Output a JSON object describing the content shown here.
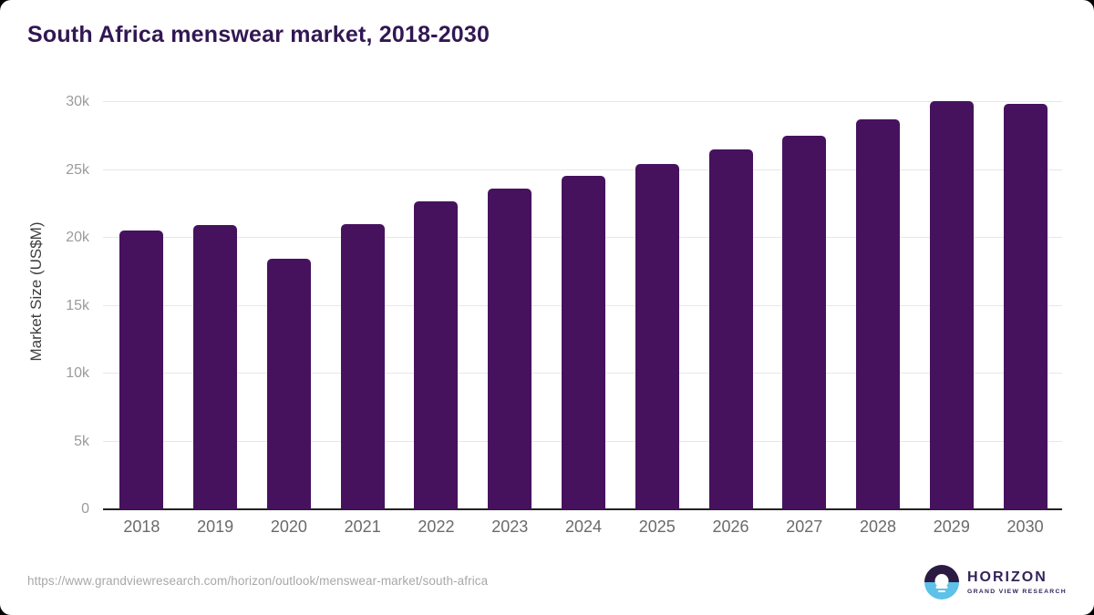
{
  "chart_data": {
    "type": "bar",
    "title": "South Africa menswear market, 2018-2030",
    "xlabel": "",
    "ylabel": "Market Size (US$M)",
    "categories": [
      "2018",
      "2019",
      "2020",
      "2021",
      "2022",
      "2023",
      "2024",
      "2025",
      "2026",
      "2027",
      "2028",
      "2029",
      "2030"
    ],
    "values": [
      20550,
      20950,
      18450,
      21000,
      22700,
      23650,
      24550,
      25450,
      26500,
      27550,
      28750,
      30100,
      29900
    ],
    "ylim": [
      0,
      30000
    ],
    "yticks": [
      {
        "value": 0,
        "label": "0"
      },
      {
        "value": 5000,
        "label": "5k"
      },
      {
        "value": 10000,
        "label": "10k"
      },
      {
        "value": 15000,
        "label": "15k"
      },
      {
        "value": 20000,
        "label": "20k"
      },
      {
        "value": 25000,
        "label": "25k"
      },
      {
        "value": 30000,
        "label": "30k"
      }
    ],
    "grid": "horizontal",
    "legend": "none",
    "bar_color": "#46125e"
  },
  "footer": {
    "source_url": "https://www.grandviewresearch.com/horizon/outlook/menswear-market/south-africa",
    "logo": {
      "brand": "HORIZON",
      "tagline": "GRAND VIEW RESEARCH",
      "icon": "sun-over-horizon-icon"
    }
  },
  "colors": {
    "title_text": "#321753",
    "bar": "#46125e",
    "gridline": "#e7e7e7",
    "axis_line": "#222222",
    "y_tick_text": "#9b9b9b",
    "x_tick_text": "#6a6a6a",
    "url_text": "#a8a8a8",
    "logo_purple": "#2b1b43",
    "logo_blue": "#5ec1e8",
    "logo_text": "#33235a"
  }
}
